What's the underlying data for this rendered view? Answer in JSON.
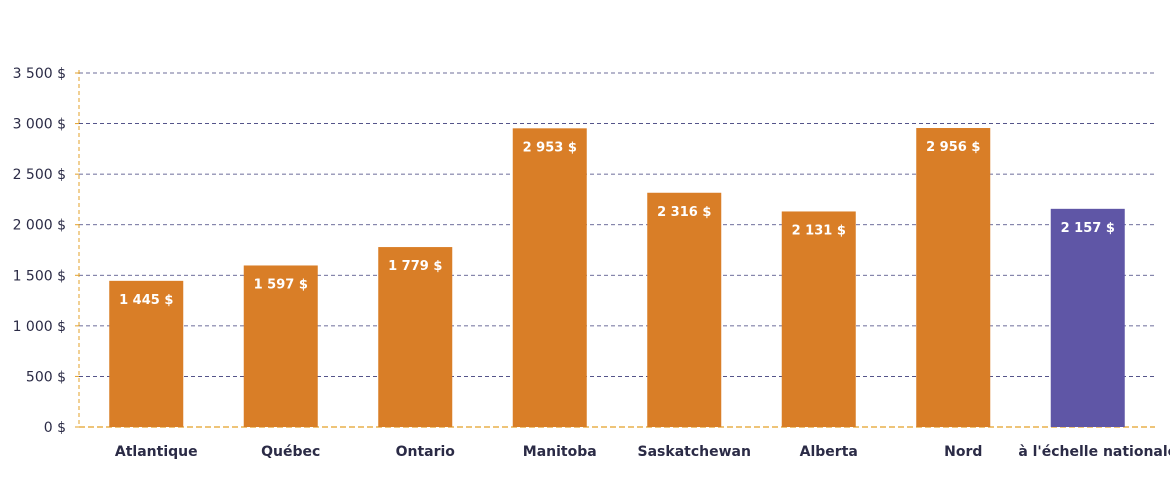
{
  "chart_data": {
    "type": "bar",
    "categories": [
      "Atlantique",
      "Québec",
      "Ontario",
      "Manitoba",
      "Saskatchewan",
      "Alberta",
      "Nord",
      "à l'échelle nationale"
    ],
    "values": [
      1445,
      1597,
      1779,
      2953,
      2316,
      2131,
      2956,
      2157
    ],
    "data_labels": [
      "1 445 $",
      "1 597 $",
      "1 779 $",
      "2 953 $",
      "2 316 $",
      "2 131 $",
      "2 956 $",
      "2 157 $"
    ],
    "title": "",
    "xlabel": "",
    "ylabel": "",
    "ylim": [
      0,
      3500
    ],
    "yticks": [
      0,
      500,
      1000,
      1500,
      2000,
      2500,
      3000,
      3500
    ],
    "ytick_labels": [
      "0 $",
      "500 $",
      "1 000 $",
      "1 500 $",
      "2 000 $",
      "2 500 $",
      "3 000 $",
      "3 500 $"
    ],
    "grid": true,
    "legend": "none",
    "colors": {
      "bar": "#d97e27",
      "highlight_bar": "#5f56a6",
      "gridline": "#3d3d7a",
      "axis": "#e3a128"
    },
    "highlight_index": 7
  }
}
